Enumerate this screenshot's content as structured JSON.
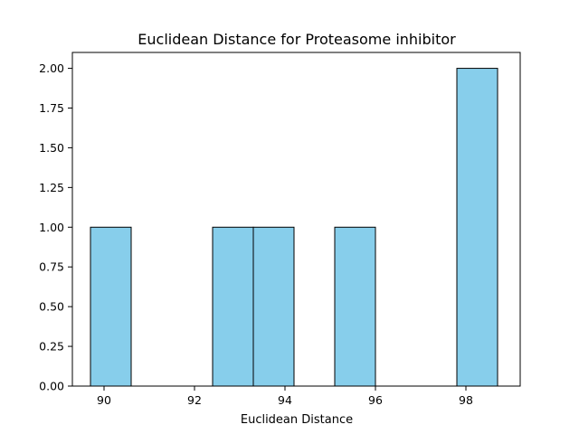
{
  "chart_data": {
    "type": "bar",
    "title": "Euclidean Distance for Proteasome inhibitor",
    "xlabel": "Euclidean Distance",
    "ylabel": "",
    "xlim": [
      89.3,
      99.2
    ],
    "ylim": [
      0,
      2.1
    ],
    "bar_color": "#87CEEB",
    "edge_color": "#000000",
    "bins": [
      {
        "x0": 89.7,
        "x1": 90.6,
        "count": 1
      },
      {
        "x0": 90.6,
        "x1": 91.5,
        "count": 0
      },
      {
        "x0": 91.5,
        "x1": 92.4,
        "count": 0
      },
      {
        "x0": 92.4,
        "x1": 93.3,
        "count": 1
      },
      {
        "x0": 93.3,
        "x1": 94.2,
        "count": 1
      },
      {
        "x0": 94.2,
        "x1": 95.1,
        "count": 0
      },
      {
        "x0": 95.1,
        "x1": 96.0,
        "count": 1
      },
      {
        "x0": 96.0,
        "x1": 96.9,
        "count": 0
      },
      {
        "x0": 96.9,
        "x1": 97.8,
        "count": 0
      },
      {
        "x0": 97.8,
        "x1": 98.7,
        "count": 2
      }
    ],
    "xticks": [
      {
        "value": 90,
        "label": "90"
      },
      {
        "value": 92,
        "label": "92"
      },
      {
        "value": 94,
        "label": "94"
      },
      {
        "value": 96,
        "label": "96"
      },
      {
        "value": 98,
        "label": "98"
      }
    ],
    "yticks": [
      {
        "value": 0,
        "label": "0.00"
      },
      {
        "value": 0.25,
        "label": "0.25"
      },
      {
        "value": 0.5,
        "label": "0.50"
      },
      {
        "value": 0.75,
        "label": "0.75"
      },
      {
        "value": 1.0,
        "label": "1.00"
      },
      {
        "value": 1.25,
        "label": "1.25"
      },
      {
        "value": 1.5,
        "label": "1.50"
      },
      {
        "value": 1.75,
        "label": "1.75"
      },
      {
        "value": 2.0,
        "label": "2.00"
      }
    ],
    "grid": false,
    "legend": "none"
  }
}
